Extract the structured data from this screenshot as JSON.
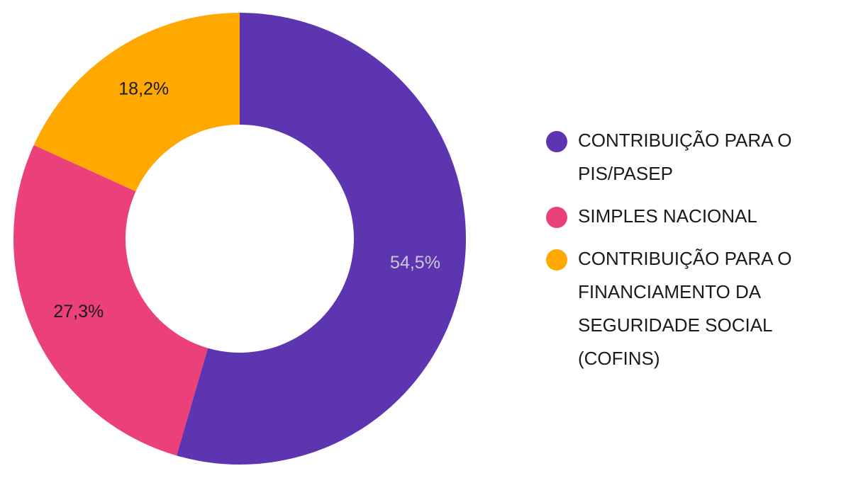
{
  "chart_data": {
    "type": "pie",
    "style": "donut",
    "title": "",
    "legend_position": "right",
    "slices": [
      {
        "label": "CONTRIBUIÇÃO PARA O PIS/PASEP",
        "value": 54.5,
        "value_label": "54,5%",
        "color": "#5e35b1",
        "label_color": "#c9c9d6",
        "legend_lines": [
          "CONTRIBUIÇÃO PARA O",
          "PIS/PASEP"
        ]
      },
      {
        "label": "SIMPLES NACIONAL",
        "value": 27.3,
        "value_label": "27,3%",
        "color": "#ec407a",
        "label_color": "#1a1a1a",
        "legend_lines": [
          "SIMPLES NACIONAL"
        ]
      },
      {
        "label": "CONTRIBUIÇÃO PARA O FINANCIAMENTO DA SEGURIDADE SOCIAL (COFINS)",
        "value": 18.2,
        "value_label": "18,2%",
        "color": "#ffa800",
        "label_color": "#1a1a1a",
        "legend_lines": [
          "CONTRIBUIÇÃO PARA O",
          "FINANCIAMENTO DA",
          "SEGURIDADE SOCIAL",
          "(COFINS)"
        ]
      }
    ]
  }
}
